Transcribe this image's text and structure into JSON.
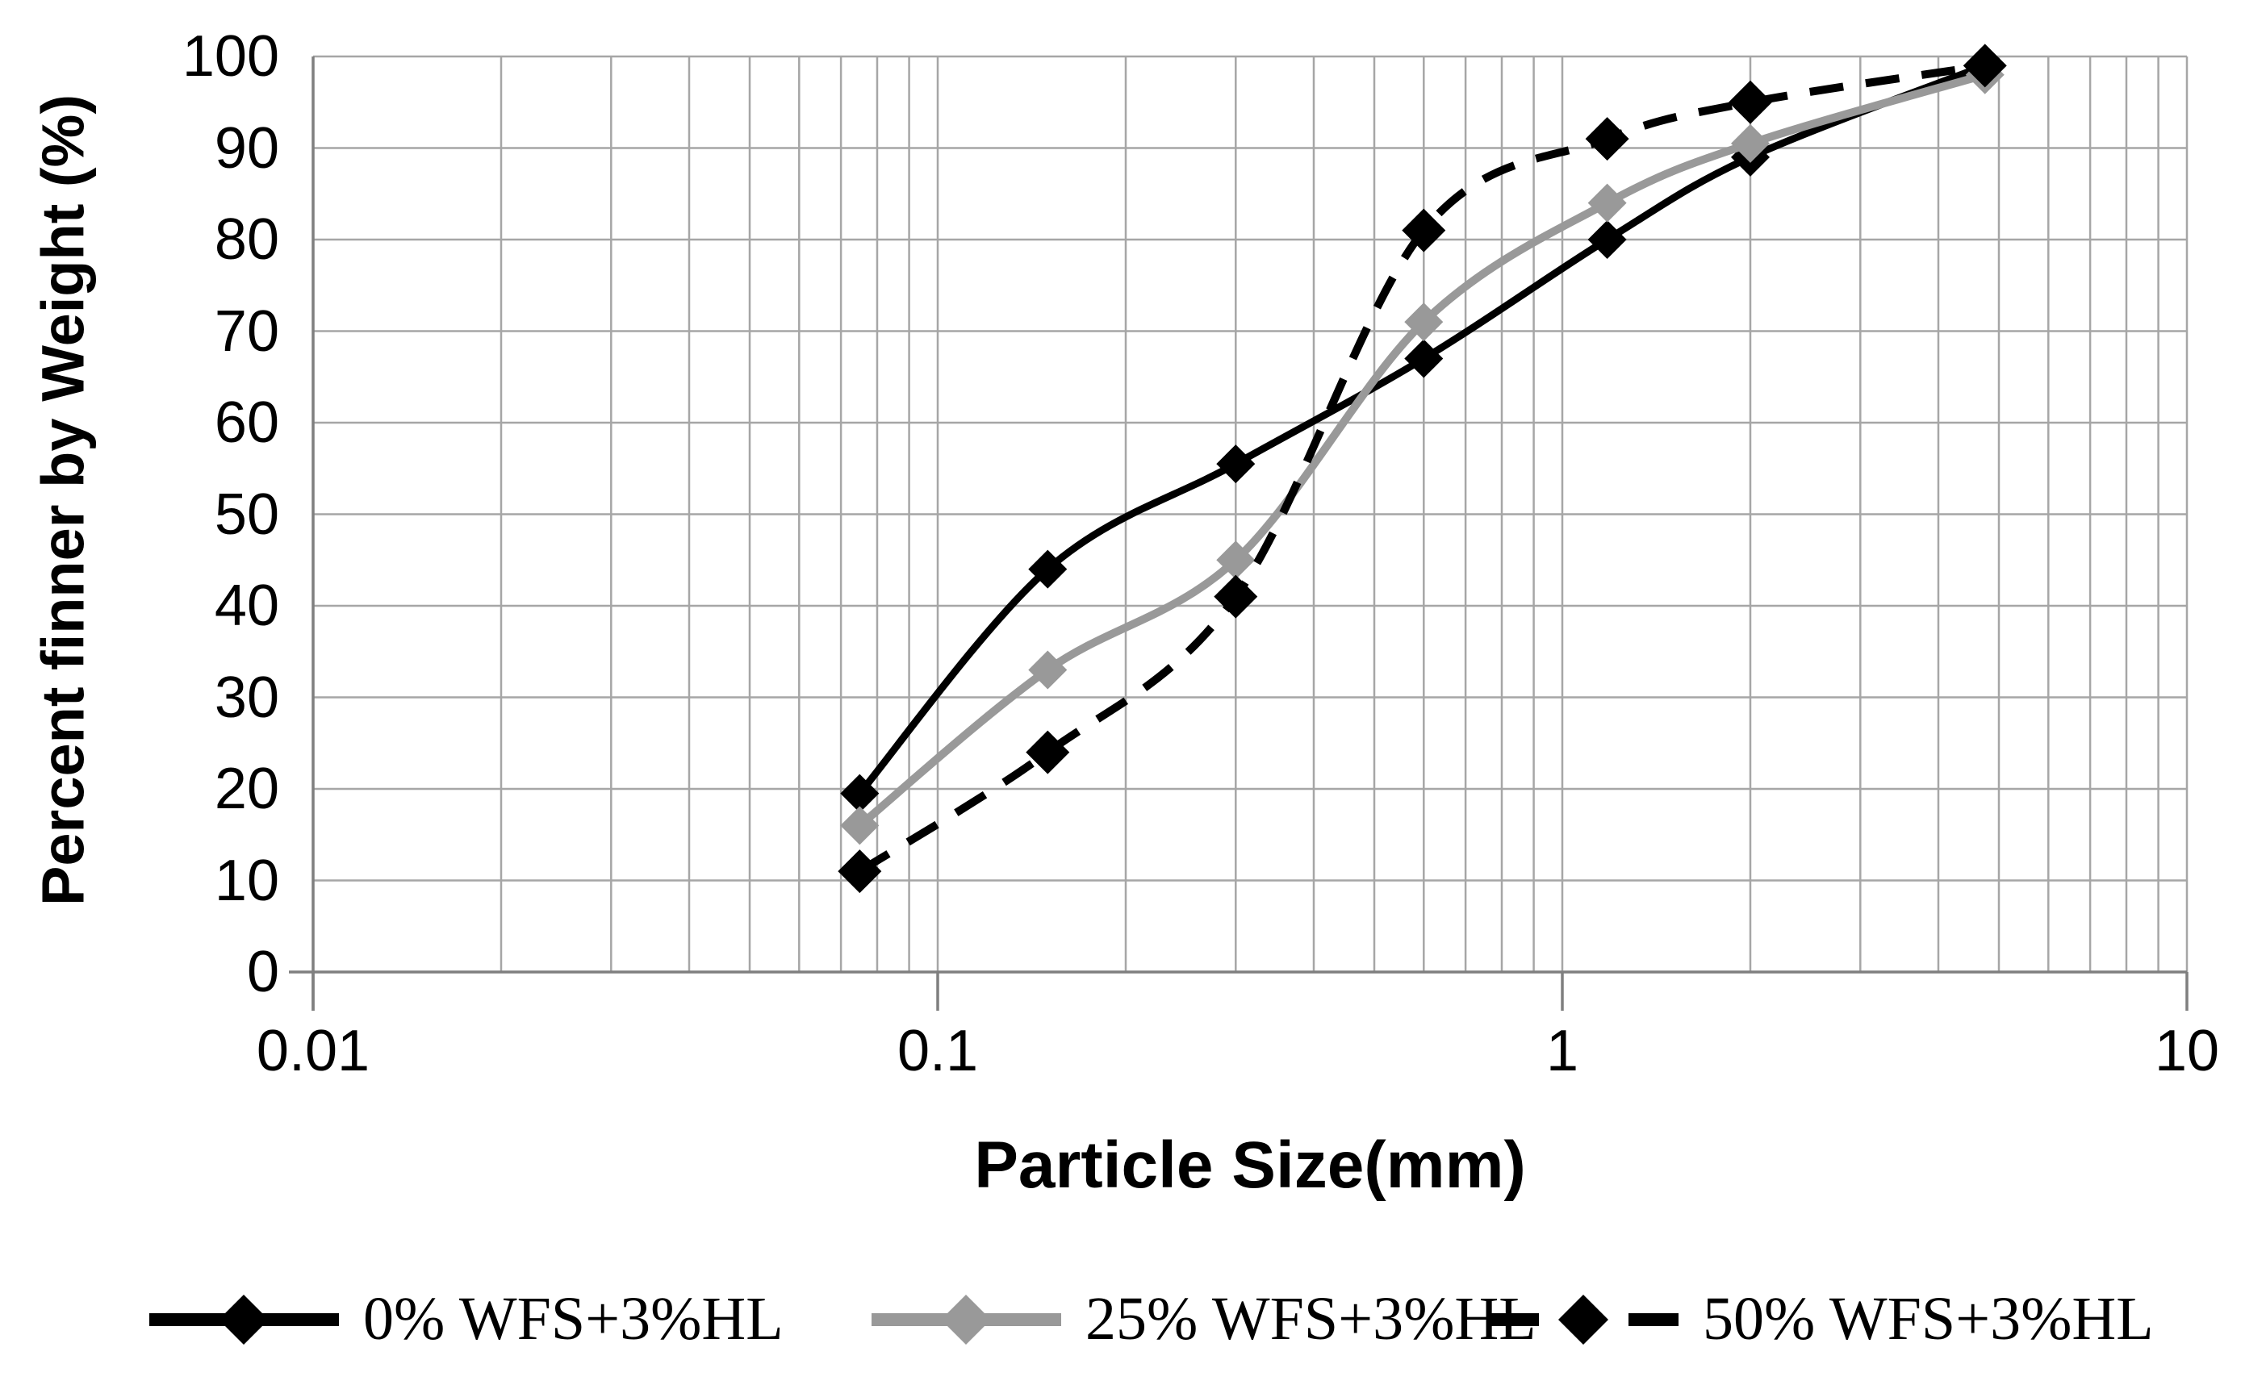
{
  "chart_data": {
    "type": "line",
    "title": "",
    "xlabel": "Particle Size(mm)",
    "ylabel": "Percent finner by Weight (%)",
    "x_scale": "log",
    "xlim": [
      0.01,
      10
    ],
    "ylim": [
      0,
      100
    ],
    "grid": true,
    "legend_position": "bottom",
    "x_tick_values": [
      0.01,
      0.1,
      1,
      10
    ],
    "x_tick_labels": [
      "0.01",
      "0.1",
      "1",
      "10"
    ],
    "y_tick_step": 10,
    "y_tick_values": [
      0,
      10,
      20,
      30,
      40,
      50,
      60,
      70,
      80,
      90,
      100
    ],
    "y_tick_labels": [
      "0",
      "10",
      "20",
      "30",
      "40",
      "50",
      "60",
      "70",
      "80",
      "90",
      "100"
    ],
    "x": [
      0.075,
      0.15,
      0.3,
      0.6,
      1.18,
      2.0,
      4.75
    ],
    "series": [
      {
        "name": "0% WFS+3%HL",
        "color": "#000000",
        "line_style": "solid",
        "marker": "diamond",
        "values": [
          19.5,
          44,
          55.5,
          67,
          80,
          89,
          99
        ]
      },
      {
        "name": "25% WFS+3%HL",
        "color": "#999999",
        "line_style": "solid",
        "marker": "diamond",
        "values": [
          16,
          33,
          45,
          71,
          84,
          90.5,
          98
        ]
      },
      {
        "name": "50% WFS+3%HL",
        "color": "#000000",
        "line_style": "dashed",
        "marker": "diamond",
        "values": [
          11,
          24,
          41,
          81,
          91,
          95,
          99
        ]
      }
    ],
    "colors": {
      "gridline": "#a6a6a6",
      "axis": "#7f7f7f",
      "text": "#000000"
    }
  }
}
